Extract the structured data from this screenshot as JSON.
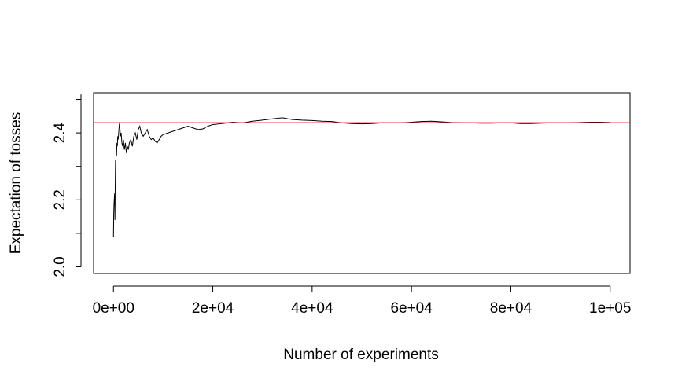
{
  "chart_data": {
    "type": "line",
    "title": "",
    "xlabel": "Number of experiments",
    "ylabel": "Expectation of tosses",
    "xlim": [
      -4000,
      104000
    ],
    "ylim": [
      1.98,
      2.52
    ],
    "x_ticks": [
      {
        "value": 0,
        "label": "0e+00"
      },
      {
        "value": 20000,
        "label": "2e+04"
      },
      {
        "value": 40000,
        "label": "4e+04"
      },
      {
        "value": 60000,
        "label": "6e+04"
      },
      {
        "value": 80000,
        "label": "8e+04"
      },
      {
        "value": 100000,
        "label": "1e+05"
      }
    ],
    "y_ticks": [
      {
        "value": 2.0,
        "label": "2.0"
      },
      {
        "value": 2.2,
        "label": "2.2"
      },
      {
        "value": 2.4,
        "label": "2.4"
      }
    ],
    "reference_line": {
      "y": 2.4305,
      "color": "#ff0000"
    },
    "series": [
      {
        "color": "#000000",
        "points": [
          [
            1,
            2.09
          ],
          [
            60,
            2.16
          ],
          [
            120,
            2.19
          ],
          [
            200,
            2.21
          ],
          [
            260,
            2.22
          ],
          [
            300,
            2.14
          ],
          [
            350,
            2.23
          ],
          [
            420,
            2.32
          ],
          [
            480,
            2.3
          ],
          [
            550,
            2.35
          ],
          [
            620,
            2.33
          ],
          [
            700,
            2.37
          ],
          [
            780,
            2.36
          ],
          [
            860,
            2.39
          ],
          [
            950,
            2.38
          ],
          [
            1050,
            2.4
          ],
          [
            1150,
            2.42
          ],
          [
            1230,
            2.43
          ],
          [
            1320,
            2.41
          ],
          [
            1420,
            2.39
          ],
          [
            1550,
            2.4
          ],
          [
            1700,
            2.37
          ],
          [
            1850,
            2.36
          ],
          [
            2000,
            2.38
          ],
          [
            2200,
            2.35
          ],
          [
            2400,
            2.37
          ],
          [
            2600,
            2.34
          ],
          [
            2800,
            2.36
          ],
          [
            3000,
            2.35
          ],
          [
            3200,
            2.37
          ],
          [
            3500,
            2.38
          ],
          [
            3800,
            2.36
          ],
          [
            4100,
            2.39
          ],
          [
            4400,
            2.4
          ],
          [
            4700,
            2.38
          ],
          [
            5000,
            2.41
          ],
          [
            5300,
            2.42
          ],
          [
            5600,
            2.4
          ],
          [
            6000,
            2.39
          ],
          [
            6400,
            2.4
          ],
          [
            6800,
            2.41
          ],
          [
            7200,
            2.39
          ],
          [
            7600,
            2.38
          ],
          [
            8000,
            2.385
          ],
          [
            8400,
            2.375
          ],
          [
            8800,
            2.37
          ],
          [
            9200,
            2.38
          ],
          [
            9600,
            2.39
          ],
          [
            10000,
            2.395
          ],
          [
            11000,
            2.4
          ],
          [
            12000,
            2.405
          ],
          [
            13000,
            2.41
          ],
          [
            14000,
            2.415
          ],
          [
            15000,
            2.42
          ],
          [
            16000,
            2.415
          ],
          [
            17000,
            2.41
          ],
          [
            18000,
            2.412
          ],
          [
            19000,
            2.42
          ],
          [
            20000,
            2.425
          ],
          [
            22000,
            2.428
          ],
          [
            24000,
            2.432
          ],
          [
            26000,
            2.43
          ],
          [
            28000,
            2.435
          ],
          [
            30000,
            2.438
          ],
          [
            32000,
            2.442
          ],
          [
            34000,
            2.445
          ],
          [
            36000,
            2.44
          ],
          [
            38000,
            2.438
          ],
          [
            40000,
            2.437
          ],
          [
            42000,
            2.435
          ],
          [
            44000,
            2.434
          ],
          [
            46000,
            2.43
          ],
          [
            48000,
            2.428
          ],
          [
            50000,
            2.427
          ],
          [
            52000,
            2.428
          ],
          [
            54000,
            2.43
          ],
          [
            56000,
            2.43
          ],
          [
            58000,
            2.43
          ],
          [
            60000,
            2.432
          ],
          [
            62000,
            2.434
          ],
          [
            64000,
            2.435
          ],
          [
            66000,
            2.433
          ],
          [
            68000,
            2.431
          ],
          [
            70000,
            2.43
          ],
          [
            72000,
            2.43
          ],
          [
            74000,
            2.429
          ],
          [
            76000,
            2.429
          ],
          [
            78000,
            2.43
          ],
          [
            80000,
            2.43
          ],
          [
            82000,
            2.428
          ],
          [
            84000,
            2.428
          ],
          [
            86000,
            2.429
          ],
          [
            88000,
            2.43
          ],
          [
            90000,
            2.43
          ],
          [
            92000,
            2.43
          ],
          [
            94000,
            2.431
          ],
          [
            96000,
            2.432
          ],
          [
            98000,
            2.432
          ],
          [
            100000,
            2.431
          ]
        ]
      }
    ],
    "grid": false,
    "legend": "none"
  }
}
